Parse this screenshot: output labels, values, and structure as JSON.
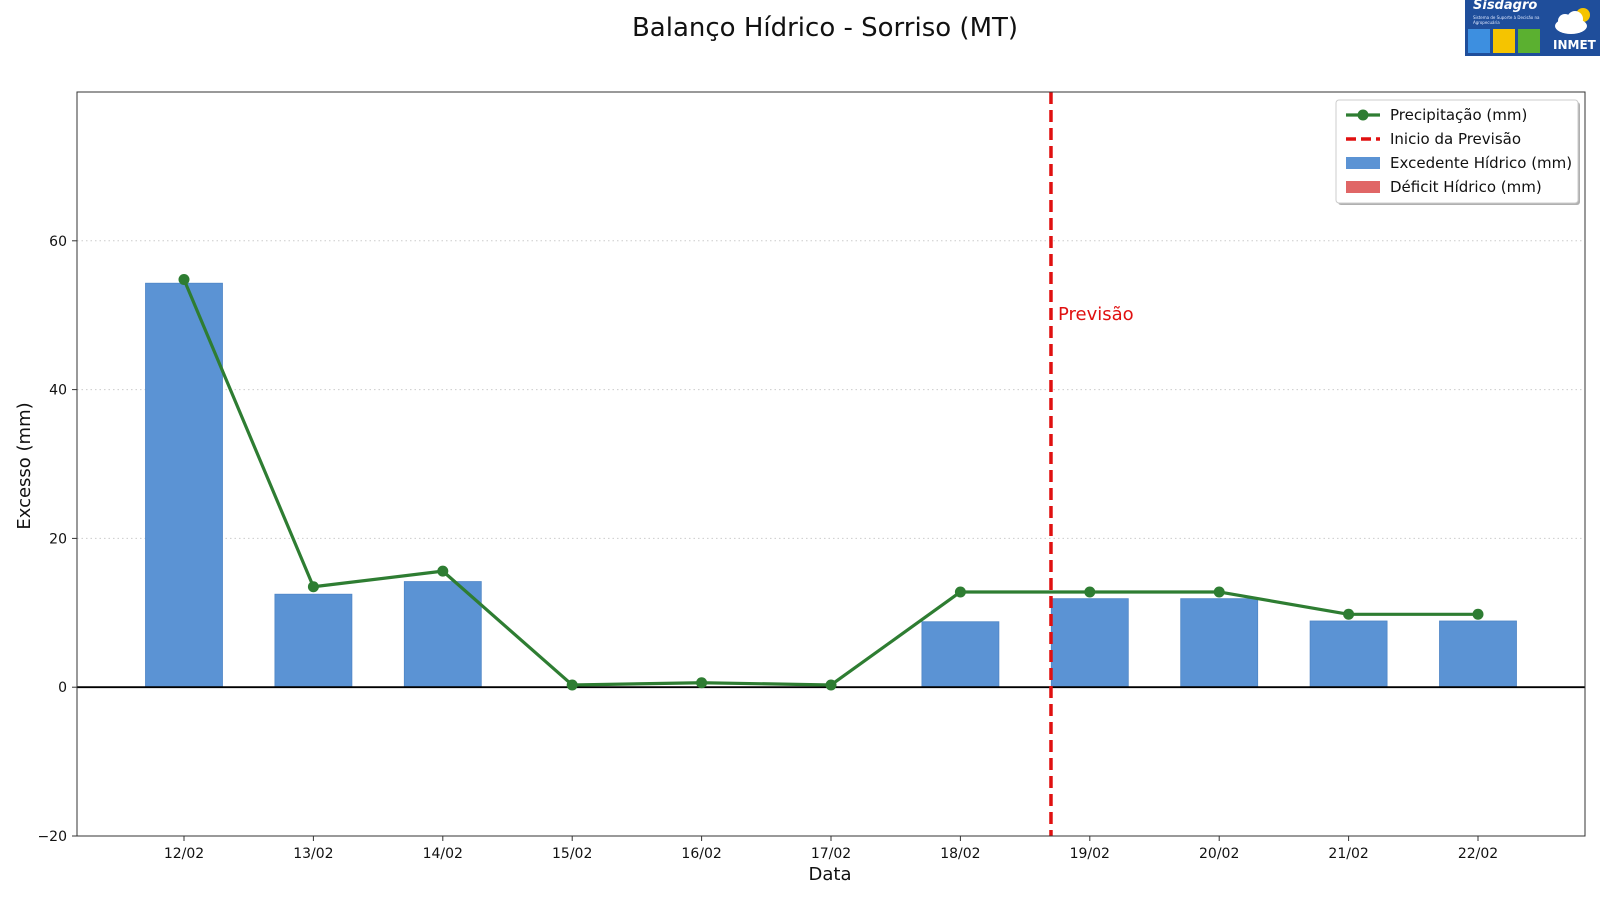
{
  "logo": {
    "name": "Sisdagro",
    "subtitle": "Sistema de Suporte à Decisão na Agropecuária",
    "org": "INMET"
  },
  "colors": {
    "bar": "#5b93d4",
    "bar_edge": "#4f86c6",
    "deficit": "#e06666",
    "line": "#2e7d32",
    "forecast": "#e01010",
    "zero_line": "#000000",
    "grid": "#cccccc"
  },
  "chart_data": {
    "type": "bar",
    "title": "Balanço Hídrico - Sorriso (MT)",
    "xlabel": "Data",
    "ylabel": "Excesso (mm)",
    "ylim": [
      -20,
      80
    ],
    "yticks": [
      -20,
      0,
      20,
      40,
      60
    ],
    "grid": "horizontal-dotted",
    "legend_position": "top-right",
    "categories": [
      "12/02",
      "13/02",
      "14/02",
      "15/02",
      "16/02",
      "17/02",
      "18/02",
      "19/02",
      "20/02",
      "21/02",
      "22/02"
    ],
    "series": [
      {
        "name": "Precipitação (mm)",
        "kind": "line",
        "values": [
          54.8,
          13.5,
          15.6,
          0.3,
          0.6,
          0.3,
          12.8,
          12.8,
          12.8,
          9.8,
          9.8
        ]
      },
      {
        "name": "Excedente Hídrico (mm)",
        "kind": "bar",
        "values": [
          54.3,
          12.5,
          14.2,
          0,
          0,
          0,
          8.8,
          11.9,
          11.9,
          8.9,
          8.9
        ]
      },
      {
        "name": "Déficit Hídrico (mm)",
        "kind": "bar",
        "values": [
          0,
          0,
          0,
          0,
          0,
          0,
          0,
          0,
          0,
          0,
          0
        ]
      }
    ],
    "forecast": {
      "legend": "Inicio da Previsão",
      "label": "Previsão",
      "x_position": 6.7
    }
  }
}
